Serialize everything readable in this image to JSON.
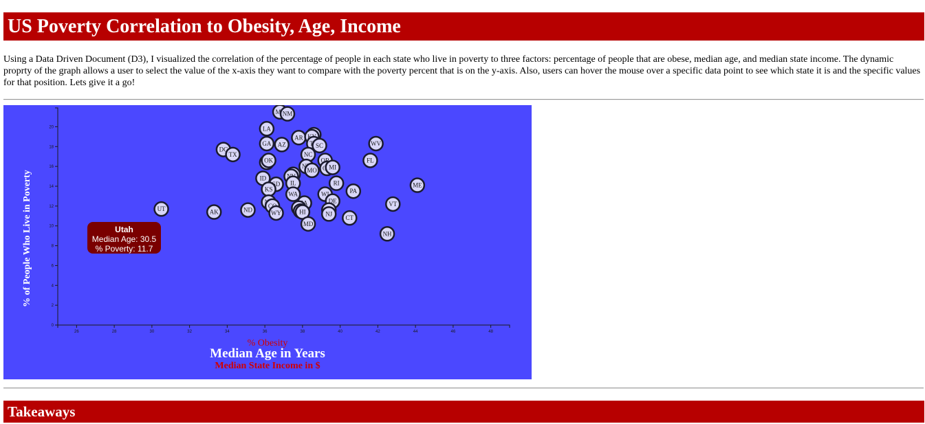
{
  "page": {
    "title": "US Poverty Correlation to Obesity, Age, Income",
    "intro": "Using a Data Driven Document (D3), I visualized the correlation of the percentage of people in each state who live in poverty to three factors: percentage of people that are obese, median age, and median state income. The dynamic proprty of the graph allows a user to select the value of the x-axis they want to compare with the poverty percent that is on the y-axis. Also, users can hover the mouse over a specific data point to see which state it is and the specific values for that position. Lets give it a go!",
    "takeaways_heading": "Takeaways"
  },
  "colors": {
    "banner": "#b70000",
    "chart_background": "#4b48ff",
    "point_fill": "#d9d7f8",
    "point_stroke": "#1b1b2e",
    "tooltip": "#7a0000",
    "inactive_axis_label": "#d00000",
    "active_axis_label": "#ffffff"
  },
  "chart": {
    "x_axis_options": {
      "obesity": "% Obesity",
      "age": "Median Age in Years",
      "income": "Median State Income in $"
    },
    "active_x_axis": "age",
    "y_label": "% of People Who Live in Poverty",
    "tooltip": {
      "name": "Utah",
      "line1": "Median Age: 30.5",
      "line2": "% Poverty: 11.7"
    }
  },
  "chart_data": {
    "type": "scatter",
    "xlabel": "Median Age in Years",
    "ylabel": "% of People Who Live in Poverty",
    "xlim": [
      25,
      49
    ],
    "ylim": [
      0,
      21.9
    ],
    "x_ticks": [
      26,
      28,
      30,
      32,
      34,
      36,
      38,
      40,
      42,
      44,
      46,
      48
    ],
    "y_ticks": [
      0,
      2,
      4,
      6,
      8,
      10,
      12,
      14,
      16,
      18,
      20
    ],
    "points": [
      {
        "abbr": "MS",
        "x": 36.8,
        "y": 21.5
      },
      {
        "abbr": "NM",
        "x": 37.2,
        "y": 21.3
      },
      {
        "abbr": "LA",
        "x": 36.1,
        "y": 19.8
      },
      {
        "abbr": "GA",
        "x": 36.1,
        "y": 18.3
      },
      {
        "abbr": "AZ",
        "x": 36.9,
        "y": 18.2
      },
      {
        "abbr": "AR",
        "x": 37.8,
        "y": 18.9
      },
      {
        "abbr": "AL",
        "x": 38.6,
        "y": 19.2
      },
      {
        "abbr": "KY",
        "x": 38.5,
        "y": 19.0
      },
      {
        "abbr": "TN",
        "x": 38.6,
        "y": 18.3
      },
      {
        "abbr": "SC",
        "x": 38.9,
        "y": 18.1
      },
      {
        "abbr": "WV",
        "x": 41.9,
        "y": 18.3
      },
      {
        "abbr": "DC",
        "x": 33.8,
        "y": 17.7
      },
      {
        "abbr": "TX",
        "x": 34.3,
        "y": 17.2
      },
      {
        "abbr": "NC",
        "x": 38.3,
        "y": 17.2
      },
      {
        "abbr": "FL",
        "x": 41.6,
        "y": 16.6
      },
      {
        "abbr": "CA",
        "x": 36.1,
        "y": 16.4
      },
      {
        "abbr": "OK",
        "x": 36.2,
        "y": 16.6
      },
      {
        "abbr": "OR",
        "x": 39.2,
        "y": 16.6
      },
      {
        "abbr": "NY",
        "x": 38.2,
        "y": 16.0
      },
      {
        "abbr": "MO",
        "x": 38.5,
        "y": 15.6
      },
      {
        "abbr": "OH",
        "x": 39.3,
        "y": 15.8
      },
      {
        "abbr": "MI",
        "x": 39.6,
        "y": 15.9
      },
      {
        "abbr": "IN",
        "x": 37.5,
        "y": 15.2
      },
      {
        "abbr": "NV",
        "x": 37.4,
        "y": 15.0
      },
      {
        "abbr": "IL",
        "x": 37.5,
        "y": 14.3
      },
      {
        "abbr": "ID",
        "x": 35.9,
        "y": 14.8
      },
      {
        "abbr": "SD",
        "x": 36.6,
        "y": 14.2
      },
      {
        "abbr": "KS",
        "x": 36.2,
        "y": 13.7
      },
      {
        "abbr": "RI",
        "x": 39.8,
        "y": 14.3
      },
      {
        "abbr": "PA",
        "x": 40.7,
        "y": 13.5
      },
      {
        "abbr": "ME",
        "x": 44.1,
        "y": 14.1
      },
      {
        "abbr": "WA",
        "x": 37.5,
        "y": 13.2
      },
      {
        "abbr": "WI",
        "x": 39.2,
        "y": 13.2
      },
      {
        "abbr": "DE",
        "x": 39.6,
        "y": 12.5
      },
      {
        "abbr": "NE",
        "x": 36.2,
        "y": 12.4
      },
      {
        "abbr": "CO",
        "x": 36.4,
        "y": 12.0
      },
      {
        "abbr": "IA",
        "x": 38.1,
        "y": 12.3
      },
      {
        "abbr": "VA",
        "x": 37.8,
        "y": 11.8
      },
      {
        "abbr": "MN",
        "x": 37.9,
        "y": 11.5
      },
      {
        "abbr": "HI",
        "x": 38.0,
        "y": 11.4
      },
      {
        "abbr": "VT",
        "x": 42.8,
        "y": 12.2
      },
      {
        "abbr": "WY",
        "x": 36.6,
        "y": 11.3
      },
      {
        "abbr": "MA",
        "x": 39.4,
        "y": 11.6
      },
      {
        "abbr": "NJ",
        "x": 39.4,
        "y": 11.2
      },
      {
        "abbr": "CT",
        "x": 40.5,
        "y": 10.8
      },
      {
        "abbr": "MD",
        "x": 38.3,
        "y": 10.2
      },
      {
        "abbr": "ND",
        "x": 35.1,
        "y": 11.6
      },
      {
        "abbr": "AK",
        "x": 33.3,
        "y": 11.4
      },
      {
        "abbr": "UT",
        "x": 30.5,
        "y": 11.7
      },
      {
        "abbr": "NH",
        "x": 42.5,
        "y": 9.2
      }
    ]
  }
}
